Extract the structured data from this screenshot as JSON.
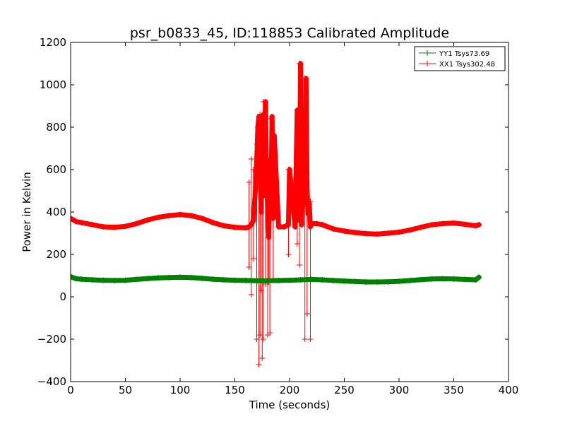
{
  "chart_data": {
    "type": "line",
    "title": "psr_b0833_45, ID:118853 Calibrated Amplitude",
    "xlabel": "Time (seconds)",
    "ylabel": "Power in Kelvin",
    "xlim": [
      0,
      400
    ],
    "ylim": [
      -400,
      1200
    ],
    "xticks": [
      0,
      50,
      100,
      150,
      200,
      250,
      300,
      350,
      400
    ],
    "yticks": [
      -400,
      -200,
      0,
      200,
      400,
      600,
      800,
      1000,
      1200
    ],
    "grid": false,
    "legend_position": "top-right",
    "series": [
      {
        "name": "YY1 Tsys73.69",
        "color": "#008000",
        "x": [
          0,
          5,
          10,
          20,
          30,
          40,
          50,
          60,
          70,
          80,
          90,
          100,
          110,
          120,
          130,
          140,
          150,
          160,
          170,
          180,
          190,
          200,
          210,
          220,
          230,
          240,
          250,
          260,
          270,
          280,
          290,
          300,
          310,
          320,
          330,
          340,
          350,
          360,
          370,
          373
        ],
        "y": [
          95,
          85,
          83,
          80,
          78,
          77,
          78,
          82,
          86,
          89,
          91,
          92,
          91,
          87,
          83,
          80,
          78,
          77,
          76,
          76,
          77,
          78,
          80,
          82,
          80,
          77,
          74,
          72,
          70,
          70,
          71,
          73,
          77,
          81,
          84,
          85,
          84,
          82,
          80,
          92
        ]
      },
      {
        "name": "XX1 Tsys302.48",
        "color": "#ff0000",
        "x": [
          0,
          5,
          10,
          20,
          30,
          40,
          50,
          60,
          70,
          80,
          90,
          100,
          110,
          120,
          130,
          140,
          150,
          160,
          163,
          165,
          167,
          169,
          170,
          171,
          172,
          173,
          174,
          175,
          176,
          177,
          178,
          179,
          180,
          181,
          182,
          183,
          184,
          185,
          186,
          190,
          195,
          199,
          200,
          205,
          207,
          209,
          210,
          211,
          212,
          214,
          215,
          216,
          217,
          218,
          219,
          220,
          225,
          230,
          240,
          250,
          260,
          270,
          280,
          290,
          300,
          310,
          320,
          330,
          340,
          350,
          360,
          370,
          373
        ],
        "y": [
          370,
          355,
          350,
          340,
          330,
          328,
          332,
          345,
          362,
          375,
          383,
          388,
          383,
          370,
          350,
          335,
          328,
          325,
          330,
          340,
          360,
          520,
          640,
          800,
          850,
          720,
          400,
          600,
          860,
          480,
          920,
          550,
          430,
          280,
          570,
          480,
          850,
          370,
          760,
          330,
          330,
          340,
          600,
          330,
          880,
          360,
          1100,
          340,
          600,
          440,
          1030,
          500,
          390,
          440,
          330,
          345,
          345,
          340,
          320,
          310,
          303,
          298,
          296,
          300,
          305,
          315,
          328,
          340,
          345,
          348,
          342,
          335,
          340
        ]
      }
    ],
    "error_bars": {
      "series": "XX1 Tsys302.48",
      "x": [
        163,
        165,
        167,
        170,
        172,
        173,
        174,
        175,
        176,
        178,
        180,
        181,
        182,
        185,
        199,
        207,
        209,
        211,
        214,
        216,
        219
      ],
      "low": [
        140,
        10,
        180,
        -200,
        -320,
        -180,
        30,
        -290,
        -200,
        60,
        -180,
        70,
        -170,
        80,
        200,
        250,
        150,
        350,
        -200,
        -80,
        -200
      ],
      "high": [
        540,
        650,
        600,
        720,
        830,
        860,
        720,
        760,
        920,
        880,
        560,
        640,
        840,
        760,
        600,
        880,
        1100,
        620,
        1030,
        500,
        450
      ]
    }
  }
}
